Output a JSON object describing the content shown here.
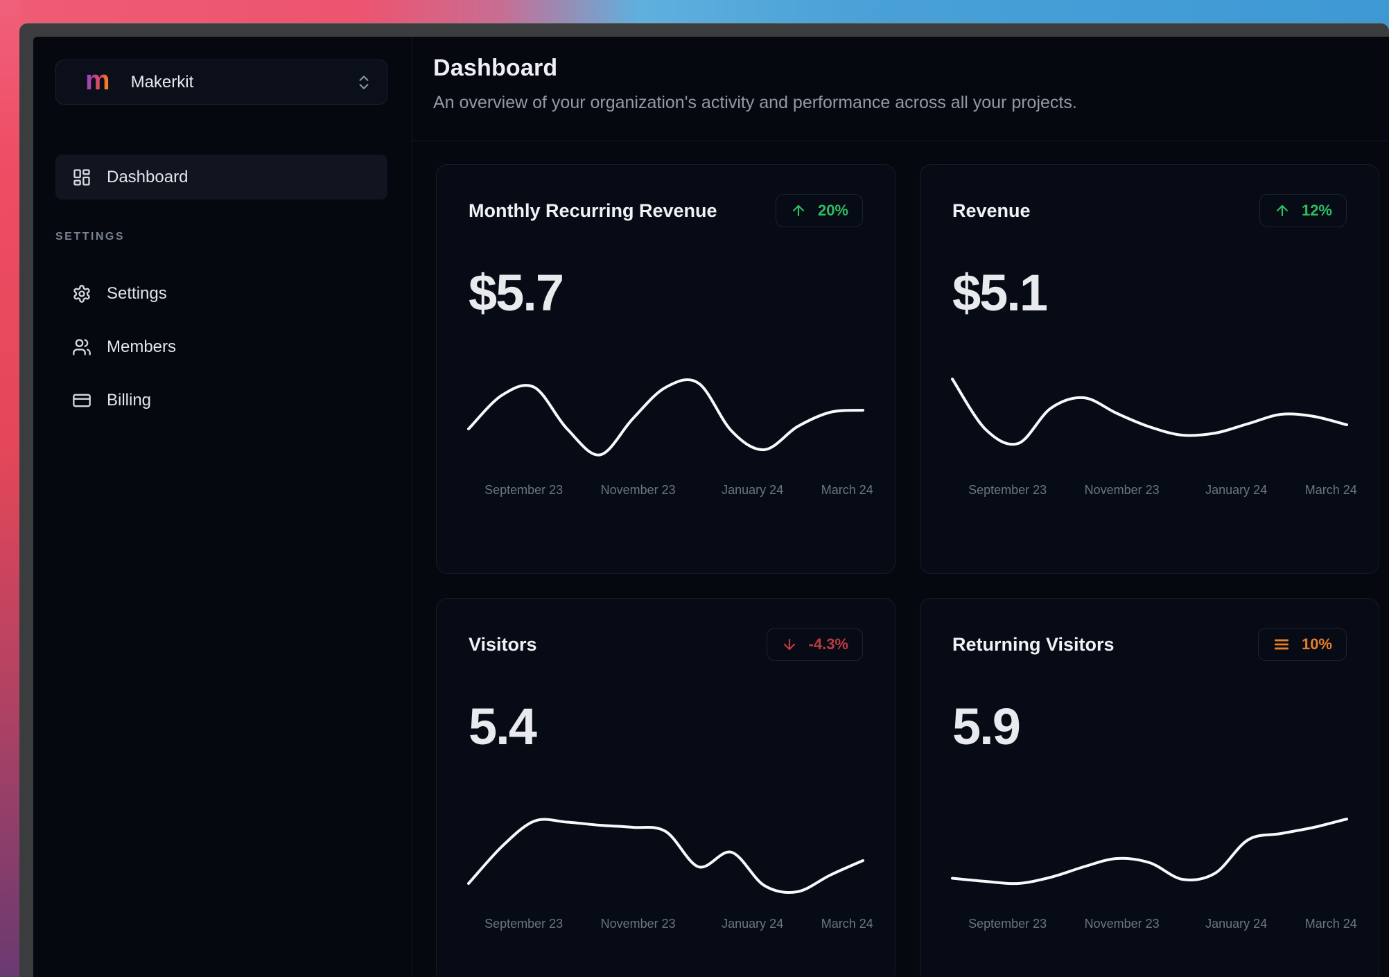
{
  "desktop": {
    "wallpaper_left_colors": [
      "#f0607a",
      "#e44758",
      "#693a72"
    ],
    "wallpaper_right_color": "#3e98d4"
  },
  "sidebar": {
    "workspace": {
      "logo_letter": "m",
      "name": "Makerkit"
    },
    "nav": [
      {
        "label": "Dashboard",
        "icon": "layout-dashboard",
        "active": true
      }
    ],
    "section_label": "SETTINGS",
    "settings_nav": [
      {
        "label": "Settings",
        "icon": "gear"
      },
      {
        "label": "Members",
        "icon": "users"
      },
      {
        "label": "Billing",
        "icon": "credit-card"
      }
    ]
  },
  "header": {
    "title": "Dashboard",
    "subtitle": "An overview of your organization's activity and performance across all your projects."
  },
  "cards": [
    {
      "title": "Monthly Recurring Revenue",
      "value": "$5.7",
      "trend": "up",
      "trend_label": "20%",
      "trend_color": "#2ebd63"
    },
    {
      "title": "Revenue",
      "value": "$5.1",
      "trend": "up",
      "trend_label": "12%",
      "trend_color": "#2ebd63"
    },
    {
      "title": "Visitors",
      "value": "5.4",
      "trend": "down",
      "trend_label": "-4.3%",
      "trend_color": "#bf3a40"
    },
    {
      "title": "Returning Visitors",
      "value": "5.9",
      "trend": "flat",
      "trend_label": "10%",
      "trend_color": "#e97d28"
    }
  ],
  "chart_data": [
    {
      "type": "line",
      "title": "Monthly Recurring Revenue sparkline",
      "line_color": "#f8f9fb",
      "x_labels": [
        "September 23",
        "November 23",
        "January 24",
        "March 24"
      ],
      "x_label_positions_pct": [
        14,
        43,
        72,
        96
      ],
      "values_note": "no y-axis shown; values are normalized 0-100 curve heights",
      "values": [
        40,
        72,
        80,
        40,
        15,
        50,
        80,
        84,
        38,
        20,
        42,
        56,
        58
      ]
    },
    {
      "type": "line",
      "title": "Revenue sparkline",
      "line_color": "#f8f9fb",
      "x_labels": [
        "September 23",
        "November 23",
        "January 24",
        "March 24"
      ],
      "x_label_positions_pct": [
        14,
        43,
        72,
        96
      ],
      "values_note": "no y-axis shown; values are normalized 0-100 curve heights",
      "values": [
        88,
        40,
        26,
        60,
        70,
        55,
        42,
        34,
        36,
        45,
        54,
        52,
        44
      ]
    },
    {
      "type": "line",
      "title": "Visitors sparkline",
      "line_color": "#f8f9fb",
      "x_labels": [
        "September 23",
        "November 23",
        "January 24",
        "March 24"
      ],
      "x_label_positions_pct": [
        14,
        43,
        72,
        96
      ],
      "values_note": "no y-axis shown; values are normalized 0-100 curve heights",
      "values": [
        20,
        55,
        80,
        79,
        76,
        74,
        70,
        36,
        50,
        18,
        12,
        28,
        42
      ]
    },
    {
      "type": "line",
      "title": "Returning Visitors sparkline",
      "line_color": "#f8f9fb",
      "x_labels": [
        "September 23",
        "November 23",
        "January 24",
        "March 24"
      ],
      "x_label_positions_pct": [
        14,
        43,
        72,
        96
      ],
      "values_note": "no y-axis shown; values are normalized 0-100 curve heights",
      "values": [
        25,
        22,
        20,
        26,
        36,
        44,
        40,
        24,
        30,
        62,
        68,
        74,
        82
      ]
    }
  ]
}
